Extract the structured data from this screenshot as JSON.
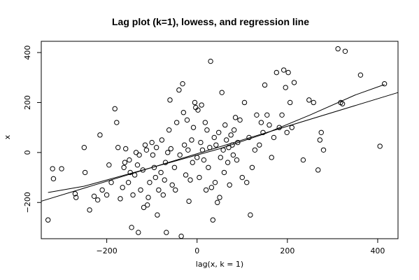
{
  "chart_data": {
    "type": "scatter",
    "title": "Lag plot (k=1), lowess, and regression line",
    "xlabel": "lag(x, k = 1)",
    "ylabel": "x",
    "xlim": [
      -345,
      445
    ],
    "ylim": [
      -345,
      445
    ],
    "x_ticks": [
      -200,
      0,
      200,
      400
    ],
    "x_tick_labels": [
      "−200",
      "0",
      "200",
      "400"
    ],
    "y_ticks": [
      -200,
      0,
      200,
      400
    ],
    "y_tick_labels": [
      "−200",
      "0",
      "200",
      "400"
    ],
    "grid": false,
    "points": [
      {
        "x": -330,
        "y": -270
      },
      {
        "x": -320,
        "y": -65
      },
      {
        "x": -318,
        "y": -105
      },
      {
        "x": -300,
        "y": -65
      },
      {
        "x": -270,
        "y": -165
      },
      {
        "x": -268,
        "y": -180
      },
      {
        "x": -250,
        "y": 20
      },
      {
        "x": -248,
        "y": -80
      },
      {
        "x": -238,
        "y": -230
      },
      {
        "x": -228,
        "y": -175
      },
      {
        "x": -220,
        "y": -190
      },
      {
        "x": -215,
        "y": 70
      },
      {
        "x": -210,
        "y": -150
      },
      {
        "x": -200,
        "y": -170
      },
      {
        "x": -195,
        "y": -50
      },
      {
        "x": -190,
        "y": -120
      },
      {
        "x": -182,
        "y": 175
      },
      {
        "x": -178,
        "y": 120
      },
      {
        "x": -175,
        "y": 20
      },
      {
        "x": -170,
        "y": -185
      },
      {
        "x": -165,
        "y": -140
      },
      {
        "x": -162,
        "y": -60
      },
      {
        "x": -160,
        "y": -40
      },
      {
        "x": -158,
        "y": 15
      },
      {
        "x": -152,
        "y": -120
      },
      {
        "x": -150,
        "y": -30
      },
      {
        "x": -148,
        "y": -80
      },
      {
        "x": -145,
        "y": -300
      },
      {
        "x": -142,
        "y": -170
      },
      {
        "x": -138,
        "y": -90
      },
      {
        "x": -135,
        "y": 0
      },
      {
        "x": -132,
        "y": -50
      },
      {
        "x": -130,
        "y": -320
      },
      {
        "x": -128,
        "y": -10
      },
      {
        "x": -125,
        "y": -150
      },
      {
        "x": -120,
        "y": -70
      },
      {
        "x": -118,
        "y": -220
      },
      {
        "x": -115,
        "y": 30
      },
      {
        "x": -112,
        "y": 10
      },
      {
        "x": -110,
        "y": -210
      },
      {
        "x": -108,
        "y": -180
      },
      {
        "x": -105,
        "y": -120
      },
      {
        "x": -100,
        "y": 40
      },
      {
        "x": -98,
        "y": -10
      },
      {
        "x": -95,
        "y": -60
      },
      {
        "x": -92,
        "y": -100
      },
      {
        "x": -90,
        "y": 20
      },
      {
        "x": -88,
        "y": -250
      },
      {
        "x": -85,
        "y": -150
      },
      {
        "x": -80,
        "y": -80
      },
      {
        "x": -78,
        "y": 50
      },
      {
        "x": -75,
        "y": -170
      },
      {
        "x": -72,
        "y": -110
      },
      {
        "x": -70,
        "y": -40
      },
      {
        "x": -68,
        "y": -320
      },
      {
        "x": -65,
        "y": 0
      },
      {
        "x": -62,
        "y": 90
      },
      {
        "x": -60,
        "y": 210
      },
      {
        "x": -58,
        "y": 15
      },
      {
        "x": -55,
        "y": -130
      },
      {
        "x": -50,
        "y": -60
      },
      {
        "x": -48,
        "y": -150
      },
      {
        "x": -45,
        "y": 120
      },
      {
        "x": -40,
        "y": 250
      },
      {
        "x": -38,
        "y": -10
      },
      {
        "x": -35,
        "y": -335
      },
      {
        "x": -32,
        "y": 275
      },
      {
        "x": -30,
        "y": 160
      },
      {
        "x": -28,
        "y": 30
      },
      {
        "x": -25,
        "y": -90
      },
      {
        "x": -22,
        "y": 130
      },
      {
        "x": -20,
        "y": 10
      },
      {
        "x": -18,
        "y": -195
      },
      {
        "x": -15,
        "y": -110
      },
      {
        "x": -12,
        "y": 50
      },
      {
        "x": -10,
        "y": -40
      },
      {
        "x": -8,
        "y": 100
      },
      {
        "x": -5,
        "y": 200
      },
      {
        "x": -3,
        "y": 180
      },
      {
        "x": 0,
        "y": -20
      },
      {
        "x": 2,
        "y": 170
      },
      {
        "x": 5,
        "y": -100
      },
      {
        "x": 8,
        "y": 40
      },
      {
        "x": 10,
        "y": 190
      },
      {
        "x": 12,
        "y": 10
      },
      {
        "x": 15,
        "y": -30
      },
      {
        "x": 18,
        "y": 120
      },
      {
        "x": 20,
        "y": -150
      },
      {
        "x": 22,
        "y": 90
      },
      {
        "x": 25,
        "y": -60
      },
      {
        "x": 28,
        "y": 20
      },
      {
        "x": 30,
        "y": 365
      },
      {
        "x": 32,
        "y": -140
      },
      {
        "x": 35,
        "y": -270
      },
      {
        "x": 38,
        "y": 60
      },
      {
        "x": 40,
        "y": -120
      },
      {
        "x": 42,
        "y": 30
      },
      {
        "x": 45,
        "y": -200
      },
      {
        "x": 48,
        "y": 80
      },
      {
        "x": 50,
        "y": -180
      },
      {
        "x": 52,
        "y": -20
      },
      {
        "x": 55,
        "y": 240
      },
      {
        "x": 58,
        "y": 10
      },
      {
        "x": 60,
        "y": -80
      },
      {
        "x": 62,
        "y": 110
      },
      {
        "x": 65,
        "y": 50
      },
      {
        "x": 68,
        "y": -40
      },
      {
        "x": 70,
        "y": 20
      },
      {
        "x": 72,
        "y": -130
      },
      {
        "x": 75,
        "y": 70
      },
      {
        "x": 78,
        "y": 30
      },
      {
        "x": 80,
        "y": -10
      },
      {
        "x": 82,
        "y": 90
      },
      {
        "x": 85,
        "y": 140
      },
      {
        "x": 88,
        "y": -30
      },
      {
        "x": 90,
        "y": 40
      },
      {
        "x": 95,
        "y": 130
      },
      {
        "x": 100,
        "y": -100
      },
      {
        "x": 105,
        "y": 200
      },
      {
        "x": 110,
        "y": -120
      },
      {
        "x": 115,
        "y": 60
      },
      {
        "x": 118,
        "y": -250
      },
      {
        "x": 122,
        "y": -60
      },
      {
        "x": 128,
        "y": 10
      },
      {
        "x": 132,
        "y": 150
      },
      {
        "x": 138,
        "y": 30
      },
      {
        "x": 142,
        "y": 120
      },
      {
        "x": 146,
        "y": 80
      },
      {
        "x": 150,
        "y": 270
      },
      {
        "x": 155,
        "y": 150
      },
      {
        "x": 160,
        "y": 110
      },
      {
        "x": 165,
        "y": -20
      },
      {
        "x": 170,
        "y": 60
      },
      {
        "x": 176,
        "y": 320
      },
      {
        "x": 182,
        "y": 100
      },
      {
        "x": 188,
        "y": 150
      },
      {
        "x": 192,
        "y": 330
      },
      {
        "x": 196,
        "y": 260
      },
      {
        "x": 199,
        "y": 80
      },
      {
        "x": 202,
        "y": 320
      },
      {
        "x": 206,
        "y": 200
      },
      {
        "x": 210,
        "y": 100
      },
      {
        "x": 215,
        "y": 280
      },
      {
        "x": 235,
        "y": -30
      },
      {
        "x": 248,
        "y": 210
      },
      {
        "x": 258,
        "y": 200
      },
      {
        "x": 268,
        "y": -70
      },
      {
        "x": 272,
        "y": 50
      },
      {
        "x": 275,
        "y": 80
      },
      {
        "x": 280,
        "y": 10
      },
      {
        "x": 312,
        "y": 415
      },
      {
        "x": 318,
        "y": 200
      },
      {
        "x": 322,
        "y": 195
      },
      {
        "x": 328,
        "y": 405
      },
      {
        "x": 362,
        "y": 310
      },
      {
        "x": 405,
        "y": 25
      },
      {
        "x": 415,
        "y": 275
      }
    ],
    "regression_line": {
      "x": [
        -345,
        445
      ],
      "y": [
        -195,
        240
      ]
    },
    "lowess_line": {
      "x": [
        -330,
        -250,
        -150,
        -50,
        50,
        150,
        250,
        350,
        415
      ],
      "y": [
        -160,
        -135,
        -85,
        -35,
        15,
        75,
        150,
        230,
        272
      ]
    }
  }
}
